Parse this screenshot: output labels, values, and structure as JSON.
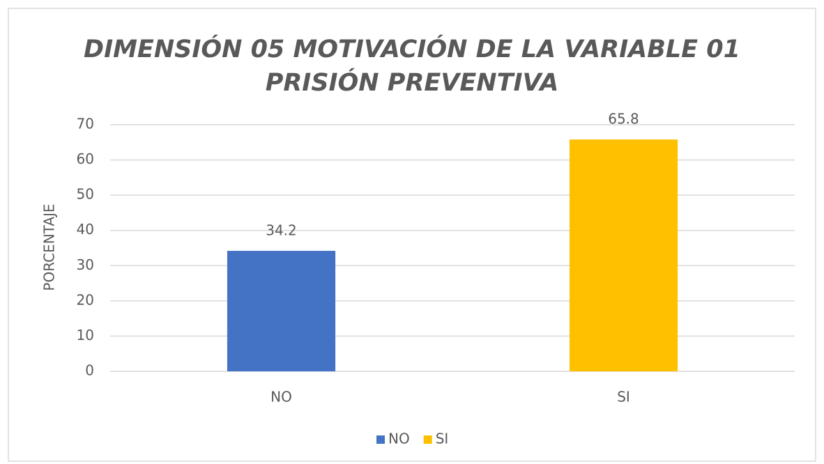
{
  "chart_data": {
    "type": "bar",
    "title": [
      "DIMENSIÓN 05 MOTIVACIÓN DE LA VARIABLE 01",
      "PRISIÓN PREVENTIVA"
    ],
    "y_label": "PORCENTAJE",
    "categories": [
      "NO",
      "SI"
    ],
    "values": [
      34.2,
      65.8
    ],
    "colors": [
      "#4472c4",
      "#ffc000"
    ],
    "ylim": [
      0,
      70
    ],
    "yticks": [
      0,
      10,
      20,
      30,
      40,
      50,
      60,
      70
    ],
    "grid": true,
    "legend": "bottom"
  }
}
